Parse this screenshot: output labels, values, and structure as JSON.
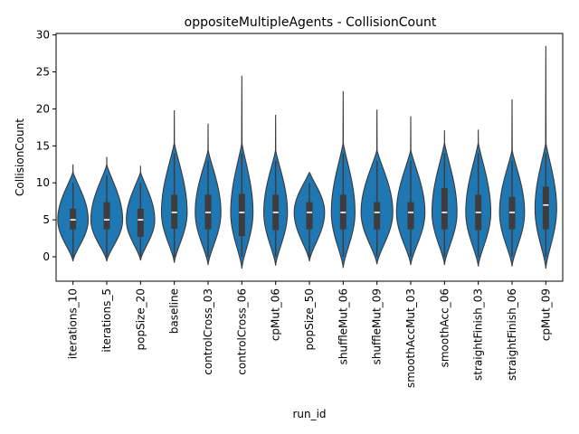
{
  "chart_data": {
    "type": "violin",
    "title": "oppositeMultipleAgents - CollisionCount",
    "xlabel": "run_id",
    "ylabel": "CollisionCount",
    "ylim": [
      -3.3,
      30.2
    ],
    "yticks": [
      0,
      5,
      10,
      15,
      20,
      25,
      30
    ],
    "grid": false,
    "violin_color": "#1f77b4",
    "categories": [
      "iterations_10",
      "iterations_5",
      "popSize_20",
      "baseline",
      "controlCross_03",
      "controlCross_06",
      "cpMut_06",
      "popSize_50",
      "shuffleMut_06",
      "shuffleMut_09",
      "smoothAccMut_03",
      "smoothAcc_06",
      "straightFinish_03",
      "straightFinish_06",
      "cpMut_09"
    ],
    "series": [
      {
        "category": "iterations_10",
        "min": -0.6,
        "max": 12.5,
        "q1": 3.7,
        "median": 5.0,
        "q3": 6.5,
        "whisker_low": 0.0,
        "whisker_high": 10.0,
        "mode": 5,
        "max_width": 0.45,
        "upper_width": 0.32,
        "lower_width": 0.15
      },
      {
        "category": "iterations_5",
        "min": -0.6,
        "max": 13.5,
        "q1": 3.7,
        "median": 5.0,
        "q3": 7.4,
        "whisker_low": 0.0,
        "whisker_high": 11.0,
        "mode": 5,
        "max_width": 0.47,
        "upper_width": 0.3,
        "lower_width": 0.12
      },
      {
        "category": "popSize_20",
        "min": -0.5,
        "max": 12.3,
        "q1": 2.7,
        "median": 5.0,
        "q3": 6.5,
        "whisker_low": 0.0,
        "whisker_high": 10.0,
        "mode": 5,
        "max_width": 0.42,
        "upper_width": 0.3,
        "lower_width": 0.18
      },
      {
        "category": "baseline",
        "min": -0.8,
        "max": 19.8,
        "q1": 3.8,
        "median": 6.0,
        "q3": 8.4,
        "whisker_low": 0.0,
        "whisker_high": 14.0,
        "mode": 6,
        "max_width": 0.38,
        "upper_width": 0.25,
        "lower_width": 0.12
      },
      {
        "category": "controlCross_03",
        "min": -1.1,
        "max": 18.0,
        "q1": 3.7,
        "median": 6.0,
        "q3": 8.4,
        "whisker_low": 0.0,
        "whisker_high": 13.0,
        "mode": 6,
        "max_width": 0.38,
        "upper_width": 0.27,
        "lower_width": 0.12
      },
      {
        "category": "controlCross_06",
        "min": -1.6,
        "max": 24.5,
        "q1": 2.8,
        "median": 6.0,
        "q3": 8.5,
        "whisker_low": 0.0,
        "whisker_high": 14.0,
        "mode": 6,
        "max_width": 0.33,
        "upper_width": 0.25,
        "lower_width": 0.12
      },
      {
        "category": "cpMut_06",
        "min": -1.2,
        "max": 19.2,
        "q1": 3.6,
        "median": 6.0,
        "q3": 8.4,
        "whisker_low": 0.0,
        "whisker_high": 13.0,
        "mode": 6,
        "max_width": 0.35,
        "upper_width": 0.25,
        "lower_width": 0.12
      },
      {
        "category": "popSize_50",
        "min": -0.6,
        "max": 11.4,
        "q1": 3.7,
        "median": 6.0,
        "q3": 7.4,
        "whisker_low": 0.0,
        "whisker_high": 10.0,
        "mode": 6,
        "max_width": 0.45,
        "upper_width": 0.35,
        "lower_width": 0.15
      },
      {
        "category": "shuffleMut_06",
        "min": -1.5,
        "max": 22.4,
        "q1": 3.7,
        "median": 6.0,
        "q3": 8.4,
        "whisker_low": 0.0,
        "whisker_high": 14.0,
        "mode": 6,
        "max_width": 0.35,
        "upper_width": 0.25,
        "lower_width": 0.12
      },
      {
        "category": "shuffleMut_09",
        "min": -1.0,
        "max": 19.9,
        "q1": 3.7,
        "median": 6.0,
        "q3": 7.4,
        "whisker_low": 0.0,
        "whisker_high": 13.0,
        "mode": 6,
        "max_width": 0.47,
        "upper_width": 0.28,
        "lower_width": 0.12
      },
      {
        "category": "smoothAccMut_03",
        "min": -1.1,
        "max": 19.0,
        "q1": 3.7,
        "median": 6.0,
        "q3": 7.4,
        "whisker_low": 0.0,
        "whisker_high": 13.0,
        "mode": 6,
        "max_width": 0.42,
        "upper_width": 0.28,
        "lower_width": 0.12
      },
      {
        "category": "smoothAcc_06",
        "min": -1.1,
        "max": 17.1,
        "q1": 3.7,
        "median": 6.0,
        "q3": 9.3,
        "whisker_low": 0.0,
        "whisker_high": 14.0,
        "mode": 6,
        "max_width": 0.37,
        "upper_width": 0.3,
        "lower_width": 0.12
      },
      {
        "category": "straightFinish_03",
        "min": -1.3,
        "max": 17.2,
        "q1": 3.6,
        "median": 6.0,
        "q3": 8.4,
        "whisker_low": 0.0,
        "whisker_high": 14.0,
        "mode": 6,
        "max_width": 0.37,
        "upper_width": 0.3,
        "lower_width": 0.12
      },
      {
        "category": "straightFinish_06",
        "min": -1.3,
        "max": 21.3,
        "q1": 3.7,
        "median": 6.0,
        "q3": 8.1,
        "whisker_low": 0.0,
        "whisker_high": 13.0,
        "mode": 6,
        "max_width": 0.37,
        "upper_width": 0.28,
        "lower_width": 0.12
      },
      {
        "category": "cpMut_09",
        "min": -1.6,
        "max": 28.5,
        "q1": 3.7,
        "median": 7.0,
        "q3": 9.5,
        "whisker_low": 0.0,
        "whisker_high": 14.0,
        "mode": 6.5,
        "max_width": 0.32,
        "upper_width": 0.3,
        "lower_width": 0.12
      }
    ]
  }
}
